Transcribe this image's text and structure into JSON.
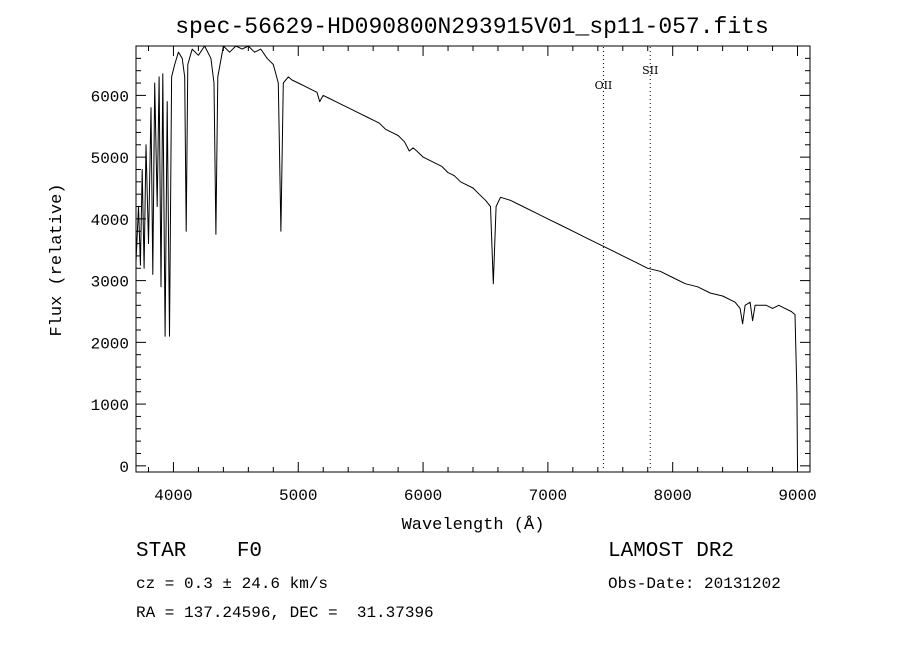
{
  "chart_data": {
    "type": "line",
    "title": "spec-56629-HD090800N293915V01_sp11-057.fits",
    "xlabel": "Wavelength (Å)",
    "ylabel": "Flux (relative)",
    "xlim": [
      3700,
      9100
    ],
    "ylim": [
      -100,
      6800
    ],
    "x_ticks": [
      4000,
      5000,
      6000,
      7000,
      8000,
      9000
    ],
    "y_ticks": [
      0,
      1000,
      2000,
      3000,
      4000,
      5000,
      6000
    ],
    "grid": false,
    "series": [
      {
        "points": [
          [
            3700,
            3300
          ],
          [
            3720,
            4200
          ],
          [
            3735,
            3250
          ],
          [
            3750,
            4800
          ],
          [
            3765,
            3200
          ],
          [
            3780,
            5200
          ],
          [
            3800,
            3600
          ],
          [
            3820,
            5800
          ],
          [
            3835,
            3100
          ],
          [
            3850,
            6200
          ],
          [
            3870,
            4200
          ],
          [
            3885,
            6300
          ],
          [
            3900,
            2900
          ],
          [
            3915,
            6350
          ],
          [
            3933,
            2100
          ],
          [
            3950,
            5900
          ],
          [
            3968,
            2100
          ],
          [
            3985,
            6300
          ],
          [
            4010,
            6500
          ],
          [
            4040,
            6700
          ],
          [
            4070,
            6600
          ],
          [
            4090,
            6300
          ],
          [
            4102,
            3800
          ],
          [
            4115,
            6500
          ],
          [
            4150,
            6750
          ],
          [
            4200,
            6650
          ],
          [
            4250,
            6800
          ],
          [
            4300,
            6600
          ],
          [
            4325,
            6200
          ],
          [
            4340,
            3750
          ],
          [
            4355,
            6300
          ],
          [
            4400,
            6800
          ],
          [
            4450,
            6700
          ],
          [
            4500,
            6800
          ],
          [
            4550,
            6750
          ],
          [
            4600,
            6800
          ],
          [
            4650,
            6700
          ],
          [
            4700,
            6750
          ],
          [
            4750,
            6600
          ],
          [
            4800,
            6500
          ],
          [
            4840,
            6200
          ],
          [
            4861,
            3800
          ],
          [
            4880,
            6200
          ],
          [
            4920,
            6300
          ],
          [
            4950,
            6250
          ],
          [
            5000,
            6200
          ],
          [
            5050,
            6150
          ],
          [
            5100,
            6100
          ],
          [
            5150,
            6050
          ],
          [
            5172,
            5900
          ],
          [
            5200,
            6000
          ],
          [
            5250,
            5950
          ],
          [
            5300,
            5900
          ],
          [
            5350,
            5850
          ],
          [
            5400,
            5800
          ],
          [
            5450,
            5750
          ],
          [
            5500,
            5700
          ],
          [
            5550,
            5650
          ],
          [
            5600,
            5600
          ],
          [
            5650,
            5550
          ],
          [
            5700,
            5450
          ],
          [
            5750,
            5400
          ],
          [
            5800,
            5350
          ],
          [
            5850,
            5250
          ],
          [
            5890,
            5100
          ],
          [
            5920,
            5150
          ],
          [
            5950,
            5100
          ],
          [
            6000,
            5000
          ],
          [
            6050,
            4950
          ],
          [
            6100,
            4900
          ],
          [
            6150,
            4850
          ],
          [
            6200,
            4750
          ],
          [
            6250,
            4700
          ],
          [
            6300,
            4600
          ],
          [
            6350,
            4550
          ],
          [
            6400,
            4500
          ],
          [
            6450,
            4400
          ],
          [
            6500,
            4300
          ],
          [
            6540,
            4200
          ],
          [
            6563,
            2950
          ],
          [
            6585,
            4200
          ],
          [
            6620,
            4350
          ],
          [
            6700,
            4300
          ],
          [
            6800,
            4200
          ],
          [
            6900,
            4100
          ],
          [
            7000,
            4000
          ],
          [
            7100,
            3900
          ],
          [
            7200,
            3800
          ],
          [
            7300,
            3700
          ],
          [
            7400,
            3600
          ],
          [
            7500,
            3500
          ],
          [
            7600,
            3400
          ],
          [
            7700,
            3300
          ],
          [
            7800,
            3200
          ],
          [
            7900,
            3150
          ],
          [
            8000,
            3050
          ],
          [
            8100,
            2950
          ],
          [
            8200,
            2900
          ],
          [
            8300,
            2800
          ],
          [
            8400,
            2750
          ],
          [
            8500,
            2650
          ],
          [
            8540,
            2550
          ],
          [
            8560,
            2300
          ],
          [
            8580,
            2600
          ],
          [
            8620,
            2650
          ],
          [
            8640,
            2350
          ],
          [
            8660,
            2600
          ],
          [
            8700,
            2600
          ],
          [
            8750,
            2600
          ],
          [
            8800,
            2550
          ],
          [
            8850,
            2600
          ],
          [
            8900,
            2550
          ],
          [
            8950,
            2500
          ],
          [
            8980,
            2450
          ],
          [
            8995,
            1200
          ],
          [
            9000,
            0
          ]
        ]
      }
    ],
    "annotations": [
      {
        "text": "OII",
        "x": 7445,
        "y": 6100
      },
      {
        "text": "SII",
        "x": 7820,
        "y": 6350
      }
    ],
    "marker_lines": [
      7445,
      7820
    ]
  },
  "info": {
    "object_class": "STAR    F0",
    "cz": "cz = 0.3 ± 24.6 km/s",
    "coords": "RA = 137.24596, DEC =  31.37396",
    "survey": "LAMOST DR2",
    "obs_date": "Obs-Date: 20131202"
  }
}
